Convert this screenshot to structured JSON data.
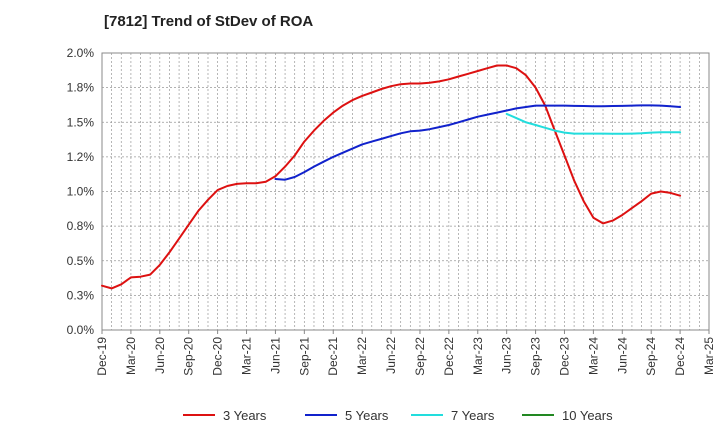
{
  "chart_data": {
    "type": "line",
    "title": "[7812]  Trend of StDev of ROA",
    "xlabel": "",
    "ylabel": "",
    "ylim": [
      0,
      2.0
    ],
    "yticks": [
      "0.0%",
      "0.3%",
      "0.5%",
      "0.8%",
      "1.0%",
      "1.2%",
      "1.5%",
      "1.8%",
      "2.0%"
    ],
    "x_categories": [
      "Dec-19",
      "Mar-20",
      "Jun-20",
      "Sep-20",
      "Dec-20",
      "Mar-21",
      "Jun-21",
      "Sep-21",
      "Dec-21",
      "Mar-22",
      "Jun-22",
      "Sep-22",
      "Dec-22",
      "Mar-23",
      "Jun-23",
      "Sep-23",
      "Dec-23",
      "Mar-24",
      "Jun-24",
      "Sep-24",
      "Dec-24",
      "Mar-25"
    ],
    "grid": true,
    "legend_position": "bottom",
    "series": [
      {
        "name": "3 Years",
        "color": "#dd1111",
        "x": [
          "Dec-19",
          "Jan-20",
          "Feb-20",
          "Mar-20",
          "Apr-20",
          "May-20",
          "Jun-20",
          "Jul-20",
          "Aug-20",
          "Sep-20",
          "Oct-20",
          "Nov-20",
          "Dec-20",
          "Jan-21",
          "Feb-21",
          "Mar-21",
          "Apr-21",
          "May-21",
          "Jun-21",
          "Jul-21",
          "Aug-21",
          "Sep-21",
          "Oct-21",
          "Nov-21",
          "Dec-21",
          "Jan-22",
          "Feb-22",
          "Mar-22",
          "Apr-22",
          "May-22",
          "Jun-22",
          "Jul-22",
          "Aug-22",
          "Sep-22",
          "Oct-22",
          "Nov-22",
          "Dec-22",
          "Jan-23",
          "Feb-23",
          "Mar-23",
          "Apr-23",
          "May-23",
          "Jun-23",
          "Jul-23",
          "Aug-23",
          "Sep-23",
          "Oct-23",
          "Nov-23",
          "Dec-23",
          "Jan-24",
          "Feb-24",
          "Mar-24",
          "Apr-24",
          "May-24",
          "Jun-24",
          "Jul-24",
          "Aug-24",
          "Sep-24",
          "Oct-24",
          "Nov-24",
          "Dec-24"
        ],
        "values": [
          0.32,
          0.3,
          0.33,
          0.38,
          0.385,
          0.4,
          0.47,
          0.56,
          0.66,
          0.76,
          0.86,
          0.94,
          1.01,
          1.04,
          1.055,
          1.06,
          1.06,
          1.07,
          1.11,
          1.18,
          1.26,
          1.36,
          1.44,
          1.51,
          1.57,
          1.62,
          1.66,
          1.69,
          1.715,
          1.74,
          1.76,
          1.775,
          1.78,
          1.78,
          1.785,
          1.795,
          1.81,
          1.83,
          1.85,
          1.87,
          1.89,
          1.91,
          1.91,
          1.89,
          1.84,
          1.75,
          1.62,
          1.44,
          1.26,
          1.08,
          0.93,
          0.81,
          0.77,
          0.79,
          0.83,
          0.88,
          0.93,
          0.985,
          1.0,
          0.99,
          0.97
        ]
      },
      {
        "name": "5 Years",
        "color": "#1122cc",
        "x": [
          "Jun-21",
          "Jul-21",
          "Aug-21",
          "Sep-21",
          "Oct-21",
          "Nov-21",
          "Dec-21",
          "Jan-22",
          "Feb-22",
          "Mar-22",
          "Apr-22",
          "May-22",
          "Jun-22",
          "Jul-22",
          "Aug-22",
          "Sep-22",
          "Oct-22",
          "Nov-22",
          "Dec-22",
          "Jan-23",
          "Feb-23",
          "Mar-23",
          "Apr-23",
          "May-23",
          "Jun-23",
          "Jul-23",
          "Aug-23",
          "Sep-23",
          "Oct-23",
          "Nov-23",
          "Dec-23",
          "Jan-24",
          "Feb-24",
          "Mar-24",
          "Apr-24",
          "May-24",
          "Jun-24",
          "Jul-24",
          "Aug-24",
          "Sep-24",
          "Oct-24",
          "Nov-24",
          "Dec-24"
        ],
        "values": [
          1.09,
          1.085,
          1.105,
          1.14,
          1.18,
          1.215,
          1.25,
          1.28,
          1.31,
          1.34,
          1.36,
          1.38,
          1.4,
          1.42,
          1.435,
          1.44,
          1.45,
          1.465,
          1.48,
          1.5,
          1.52,
          1.54,
          1.555,
          1.57,
          1.585,
          1.6,
          1.61,
          1.62,
          1.62,
          1.62,
          1.62,
          1.618,
          1.617,
          1.616,
          1.616,
          1.617,
          1.618,
          1.62,
          1.622,
          1.622,
          1.62,
          1.615,
          1.61
        ]
      },
      {
        "name": "7 Years",
        "color": "#22dddd",
        "x": [
          "Jun-23",
          "Jul-23",
          "Aug-23",
          "Sep-23",
          "Oct-23",
          "Nov-23",
          "Dec-23",
          "Jan-24",
          "Feb-24",
          "Mar-24",
          "Apr-24",
          "May-24",
          "Jun-24",
          "Jul-24",
          "Aug-24",
          "Sep-24",
          "Oct-24",
          "Nov-24",
          "Dec-24"
        ],
        "values": [
          1.56,
          1.53,
          1.5,
          1.48,
          1.46,
          1.44,
          1.425,
          1.418,
          1.418,
          1.418,
          1.418,
          1.417,
          1.417,
          1.418,
          1.42,
          1.425,
          1.428,
          1.428,
          1.428
        ]
      },
      {
        "name": "10 Years",
        "color": "#228822",
        "x": [],
        "values": []
      }
    ]
  }
}
